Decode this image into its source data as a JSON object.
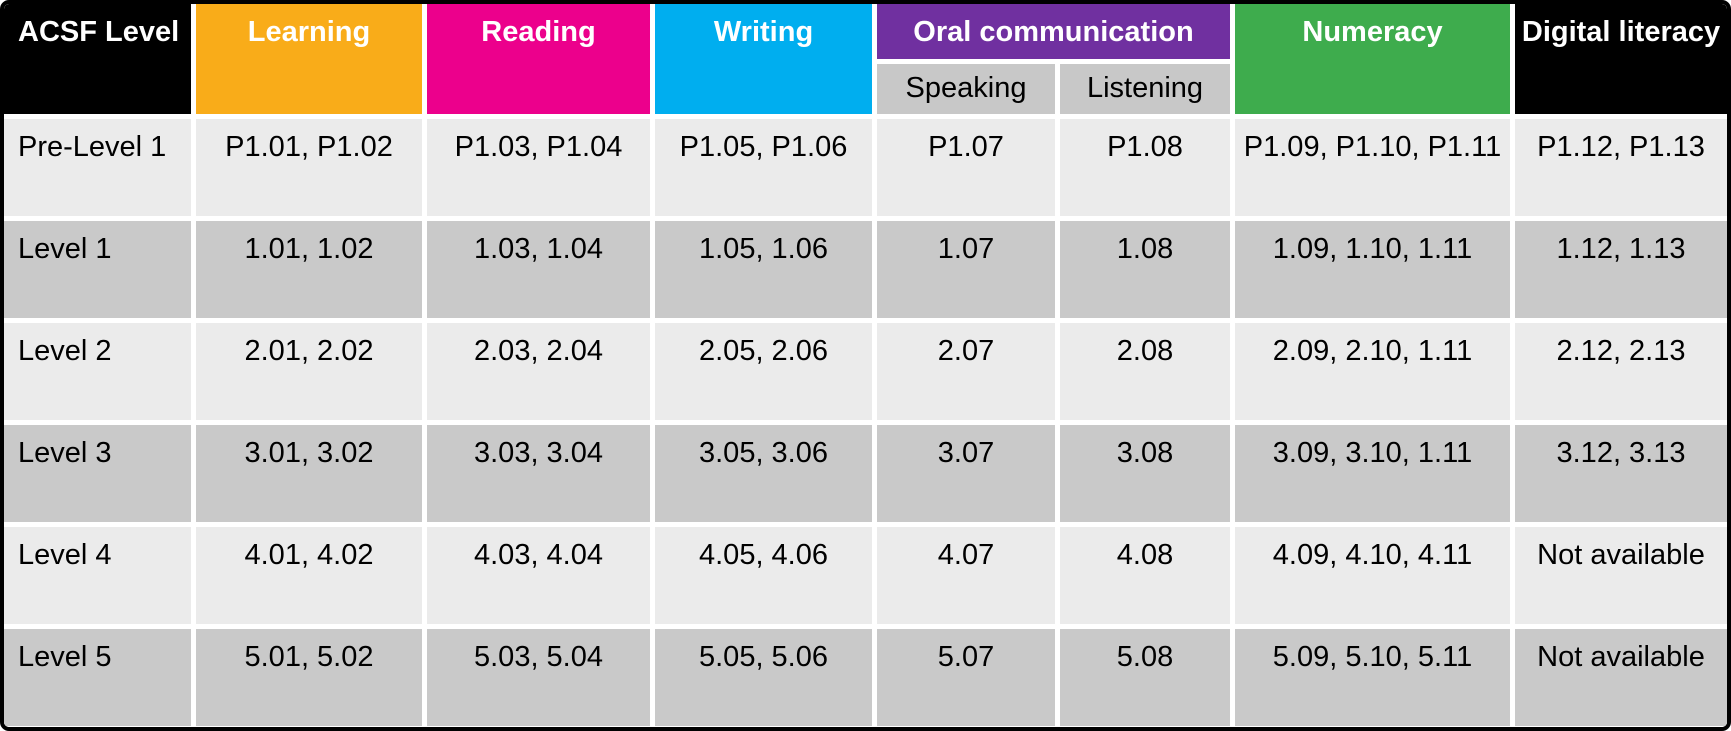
{
  "colors": {
    "row_light": "#EBEBEB",
    "row_dark": "#C9C9C9",
    "subheader_bg": "#C8C8C8",
    "gap": "#FFFFFF",
    "outer_border": "#000000"
  },
  "table": {
    "columns": [
      {
        "label": "ACSF Level",
        "color": "#000000",
        "text_color": "#FFFFFF"
      },
      {
        "label": "Learning",
        "color": "#F9AC19",
        "text_color": "#FFFFFF"
      },
      {
        "label": "Reading",
        "color": "#EC008C",
        "text_color": "#FFFFFF"
      },
      {
        "label": "Writing",
        "color": "#00AEEF",
        "text_color": "#FFFFFF"
      },
      {
        "label": "Oral communication",
        "color": "#7030A0",
        "text_color": "#FFFFFF",
        "subcolumns": [
          {
            "label": "Speaking"
          },
          {
            "label": "Listening"
          }
        ]
      },
      {
        "label": "Numeracy",
        "color": "#3EAC4D",
        "text_color": "#FFFFFF"
      },
      {
        "label": "Digital literacy",
        "color": "#000000",
        "text_color": "#FFFFFF"
      }
    ],
    "rows": [
      [
        "Pre-Level 1",
        "P1.01, P1.02",
        "P1.03, P1.04",
        "P1.05, P1.06",
        "P1.07",
        "P1.08",
        "P1.09, P1.10, P1.11",
        "P1.12, P1.13"
      ],
      [
        "Level 1",
        "1.01, 1.02",
        "1.03, 1.04",
        "1.05, 1.06",
        "1.07",
        "1.08",
        "1.09, 1.10, 1.11",
        "1.12, 1.13"
      ],
      [
        "Level 2",
        "2.01, 2.02",
        "2.03, 2.04",
        "2.05, 2.06",
        "2.07",
        "2.08",
        "2.09, 2.10, 1.11",
        "2.12, 2.13"
      ],
      [
        "Level 3",
        "3.01, 3.02",
        "3.03, 3.04",
        "3.05, 3.06",
        "3.07",
        "3.08",
        "3.09, 3.10, 1.11",
        "3.12, 3.13"
      ],
      [
        "Level 4",
        "4.01, 4.02",
        "4.03, 4.04",
        "4.05, 4.06",
        "4.07",
        "4.08",
        "4.09, 4.10, 4.11",
        "Not available"
      ],
      [
        "Level 5",
        "5.01, 5.02",
        "5.03, 5.04",
        "5.05, 5.06",
        "5.07",
        "5.08",
        "5.09, 5.10, 5.11",
        "Not available"
      ]
    ]
  },
  "chart_data": {
    "type": "table",
    "title": "ACSF indicator numbers by level and skill",
    "column_headers": [
      "ACSF Level",
      "Learning",
      "Reading",
      "Writing",
      "Oral communication – Speaking",
      "Oral communication – Listening",
      "Numeracy",
      "Digital literacy"
    ],
    "header_groups": [
      {
        "label": "Oral communication",
        "spans": [
          "Speaking",
          "Listening"
        ]
      }
    ],
    "rows": [
      [
        "Pre-Level 1",
        "P1.01, P1.02",
        "P1.03, P1.04",
        "P1.05, P1.06",
        "P1.07",
        "P1.08",
        "P1.09, P1.10, P1.11",
        "P1.12, P1.13"
      ],
      [
        "Level 1",
        "1.01, 1.02",
        "1.03, 1.04",
        "1.05, 1.06",
        "1.07",
        "1.08",
        "1.09, 1.10, 1.11",
        "1.12, 1.13"
      ],
      [
        "Level 2",
        "2.01, 2.02",
        "2.03, 2.04",
        "2.05, 2.06",
        "2.07",
        "2.08",
        "2.09, 2.10, 1.11",
        "2.12, 2.13"
      ],
      [
        "Level 3",
        "3.01, 3.02",
        "3.03, 3.04",
        "3.05, 3.06",
        "3.07",
        "3.08",
        "3.09, 3.10, 1.11",
        "3.12, 3.13"
      ],
      [
        "Level 4",
        "4.01, 4.02",
        "4.03, 4.04",
        "4.05, 4.06",
        "4.07",
        "4.08",
        "4.09, 4.10, 4.11",
        "Not available"
      ],
      [
        "Level 5",
        "5.01, 5.02",
        "5.03, 5.04",
        "5.05, 5.06",
        "5.07",
        "5.08",
        "5.09, 5.10, 5.11",
        "Not available"
      ]
    ],
    "layout": {
      "alternating_row_shading": true,
      "header_colors": {
        "ACSF Level": "#000000",
        "Learning": "#F9AC19",
        "Reading": "#EC008C",
        "Writing": "#00AEEF",
        "Oral communication": "#7030A0",
        "Numeracy": "#3EAC4D",
        "Digital literacy": "#000000"
      }
    }
  }
}
